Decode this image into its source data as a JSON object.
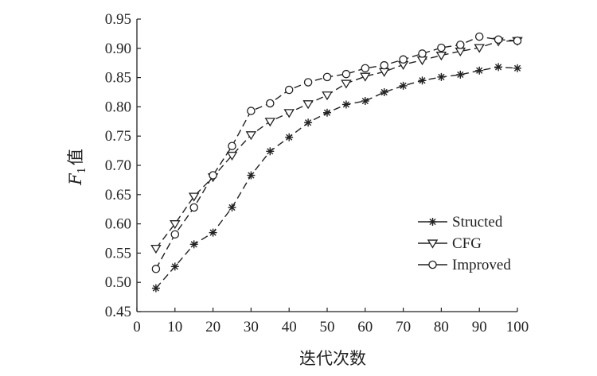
{
  "chart_data": {
    "type": "line",
    "xlabel": "迭代次数",
    "ylabel_main": "F",
    "ylabel_sub": "1",
    "ylabel_suffix": "值",
    "xlim": [
      0,
      100
    ],
    "ylim": [
      0.45,
      0.95
    ],
    "xticks": [
      "0",
      "10",
      "20",
      "30",
      "40",
      "50",
      "60",
      "70",
      "80",
      "90",
      "100"
    ],
    "yticks": [
      "0.45",
      "0.50",
      "0.55",
      "0.60",
      "0.65",
      "0.70",
      "0.75",
      "0.80",
      "0.85",
      "0.90",
      "0.95"
    ],
    "grid": false,
    "legend_position": "bottom-right",
    "x": [
      5,
      10,
      15,
      20,
      25,
      30,
      35,
      40,
      45,
      50,
      55,
      60,
      65,
      70,
      75,
      80,
      85,
      90,
      95,
      100
    ],
    "series": [
      {
        "name": "Structed",
        "marker": "star",
        "values": [
          0.49,
          0.527,
          0.565,
          0.585,
          0.628,
          0.683,
          0.724,
          0.748,
          0.773,
          0.79,
          0.804,
          0.81,
          0.825,
          0.836,
          0.845,
          0.851,
          0.855,
          0.862,
          0.868,
          0.866
        ]
      },
      {
        "name": "CFG",
        "marker": "triangle-down",
        "values": [
          0.558,
          0.6,
          0.647,
          0.68,
          0.717,
          0.752,
          0.775,
          0.79,
          0.805,
          0.82,
          0.84,
          0.852,
          0.86,
          0.872,
          0.88,
          0.888,
          0.895,
          0.901,
          0.912,
          0.913
        ]
      },
      {
        "name": "Improved",
        "marker": "circle",
        "values": [
          0.523,
          0.582,
          0.628,
          0.683,
          0.733,
          0.793,
          0.806,
          0.829,
          0.842,
          0.851,
          0.856,
          0.866,
          0.871,
          0.881,
          0.891,
          0.901,
          0.906,
          0.92,
          0.915,
          0.913
        ]
      }
    ]
  }
}
